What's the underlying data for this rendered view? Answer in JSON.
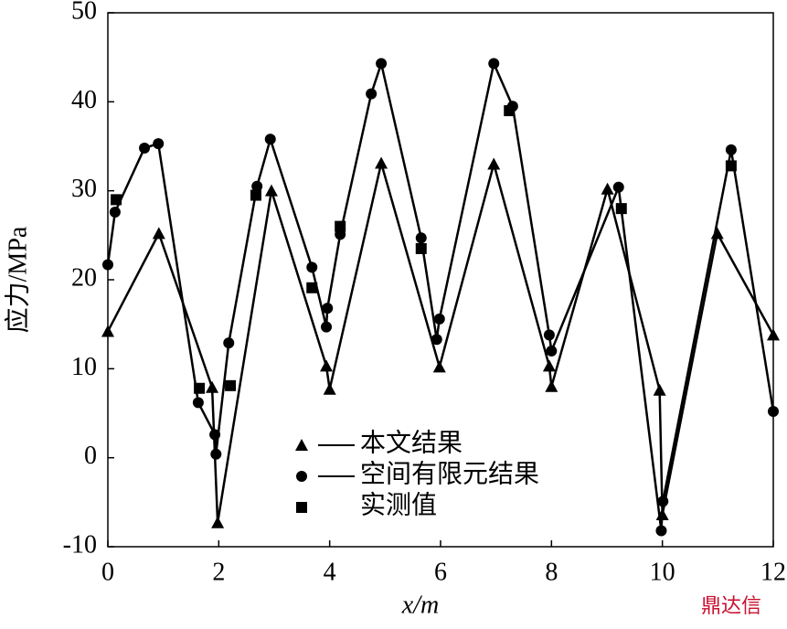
{
  "chart_data": {
    "type": "line",
    "x_label": "x/m",
    "y_label": "应力/MPa",
    "watermark": "鼎达信",
    "xlim": [
      0,
      12
    ],
    "xticks": [
      0,
      2,
      4,
      6,
      8,
      10,
      12
    ],
    "ylim": [
      -10,
      50
    ],
    "yticks": [
      -10,
      0,
      10,
      20,
      30,
      40,
      50
    ],
    "series": [
      {
        "name": "本文结果",
        "color": "#000000",
        "marker": "triangle",
        "line": true,
        "x": [
          0,
          0.92,
          1.88,
          1.98,
          2.95,
          3.94,
          4.0,
          4.93,
          5.98,
          6.96,
          7.96,
          8.0,
          9.01,
          9.95,
          10.0,
          10.99,
          12
        ],
        "values": [
          14.2,
          25.2,
          7.9,
          -7.3,
          30,
          10.3,
          7.7,
          33.1,
          10.2,
          33,
          10.3,
          8,
          30.2,
          7.6,
          -6.4,
          25.2,
          13.8
        ]
      },
      {
        "name": "空间有限元结果",
        "color": "#000000",
        "marker": "circle",
        "line": true,
        "x": [
          0,
          0.13,
          0.66,
          0.91,
          1.63,
          1.93,
          1.95,
          2.18,
          2.69,
          2.93,
          3.68,
          3.94,
          3.96,
          4.19,
          4.75,
          4.93,
          5.65,
          5.93,
          5.98,
          6.96,
          7.3,
          7.96,
          8.0,
          9.21,
          9.98,
          10.01,
          11.24,
          12
        ],
        "values": [
          21.7,
          27.6,
          34.8,
          35.3,
          6.2,
          2.6,
          0.4,
          12.9,
          30.5,
          35.8,
          21.4,
          14.7,
          16.8,
          25.1,
          40.9,
          44.3,
          24.7,
          13.3,
          15.6,
          44.3,
          39.5,
          13.8,
          12,
          30.4,
          -8.2,
          -4.9,
          34.6,
          5.2
        ]
      },
      {
        "name": "实测值",
        "color": "#000000",
        "marker": "square",
        "line": false,
        "x": [
          0.15,
          1.65,
          2.21,
          2.67,
          3.68,
          4.19,
          5.65,
          7.24,
          9.26,
          11.24
        ],
        "values": [
          29,
          7.8,
          8.1,
          29.5,
          19.1,
          26,
          23.5,
          39,
          28,
          32.8
        ]
      }
    ]
  }
}
